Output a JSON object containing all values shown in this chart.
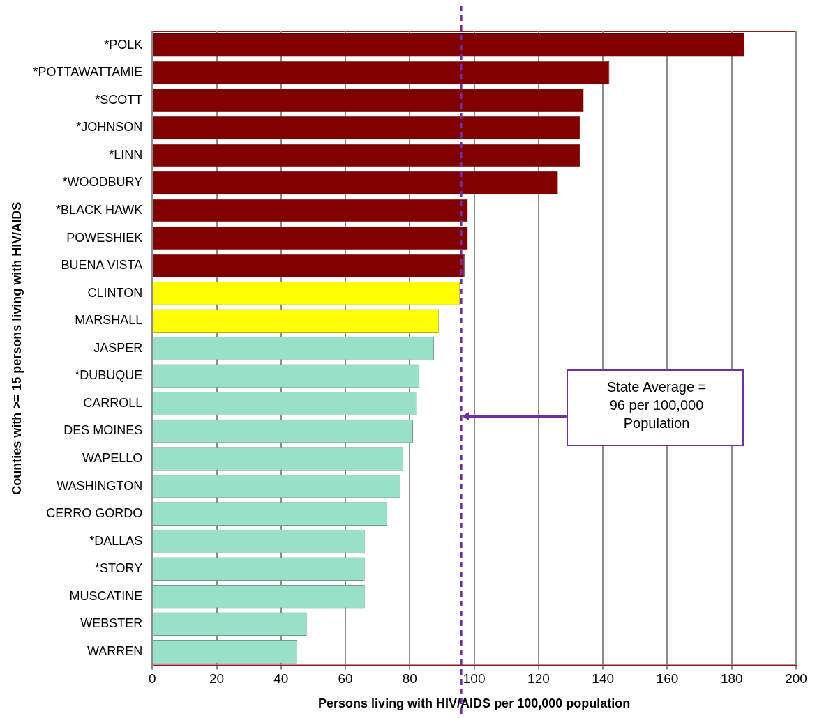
{
  "chart_data": {
    "type": "bar",
    "orientation": "horizontal",
    "xlabel": "Persons living with HIV/AIDS per 100,000 population",
    "ylabel": "Counties with >= 15 persons living with HIV/AIDS",
    "categories": [
      "*POLK",
      "*POTTAWATTAMIE",
      "*SCOTT",
      "*JOHNSON",
      "*LINN",
      "*WOODBURY",
      "*BLACK HAWK",
      "POWESHIEK",
      "BUENA VISTA",
      "CLINTON",
      "MARSHALL",
      "JASPER",
      "*DUBUQUE",
      "CARROLL",
      "DES MOINES",
      "WAPELLO",
      "WASHINGTON",
      "CERRO GORDO",
      "*DALLAS",
      "*STORY",
      "MUSCATINE",
      "WEBSTER",
      "WARREN"
    ],
    "values": [
      184,
      142,
      134,
      133,
      133,
      126,
      98,
      98,
      97,
      95.5,
      89,
      87.5,
      83,
      82,
      81,
      78,
      77,
      73,
      66,
      66,
      66,
      48,
      45
    ],
    "colors": [
      "#800000",
      "#800000",
      "#800000",
      "#800000",
      "#800000",
      "#800000",
      "#800000",
      "#800000",
      "#800000",
      "#ffff00",
      "#ffff00",
      "#98e0c8",
      "#98e0c8",
      "#98e0c8",
      "#98e0c8",
      "#98e0c8",
      "#98e0c8",
      "#98e0c8",
      "#98e0c8",
      "#98e0c8",
      "#98e0c8",
      "#98e0c8",
      "#98e0c8"
    ],
    "xlim": [
      0,
      200
    ],
    "xticks": [
      0,
      20,
      40,
      60,
      80,
      100,
      120,
      140,
      160,
      180,
      200
    ],
    "grid": "x",
    "legend": false,
    "annotations": [
      "State Average = 96 per 100,000 Population"
    ],
    "ref_lines": [
      {
        "axis": "x",
        "value": 96,
        "color": "#7030a0",
        "line_style": "dashed"
      }
    ]
  }
}
